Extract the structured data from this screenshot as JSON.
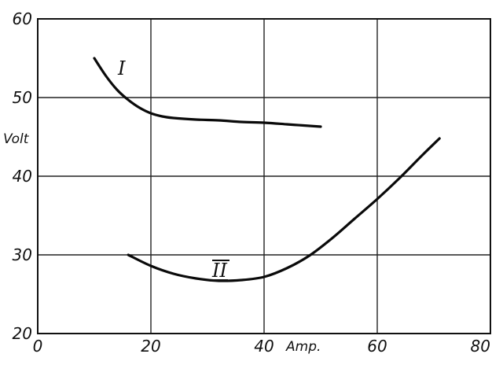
{
  "chart_data": {
    "type": "line",
    "xlabel": "Amp.",
    "ylabel": "Volt",
    "xlim": [
      0,
      80
    ],
    "ylim": [
      20,
      60
    ],
    "xticks": [
      0,
      20,
      40,
      60,
      80
    ],
    "yticks": [
      20,
      30,
      40,
      50,
      60
    ],
    "grid": true,
    "series": [
      {
        "name": "I",
        "x": [
          10,
          12,
          14,
          16,
          18,
          20,
          22,
          24,
          28,
          32,
          36,
          40,
          44,
          48,
          50
        ],
        "y": [
          55,
          52.8,
          51,
          49.7,
          48.7,
          48,
          47.6,
          47.4,
          47.2,
          47.1,
          46.9,
          46.8,
          46.6,
          46.4,
          46.3
        ]
      },
      {
        "name": "II",
        "x": [
          16,
          20,
          24,
          28,
          32,
          36,
          40,
          44,
          48,
          52,
          56,
          60,
          64,
          68,
          71
        ],
        "y": [
          30,
          28.6,
          27.6,
          27.0,
          26.7,
          26.8,
          27.2,
          28.3,
          29.9,
          32.1,
          34.6,
          37.1,
          39.8,
          42.7,
          44.8
        ]
      }
    ]
  }
}
